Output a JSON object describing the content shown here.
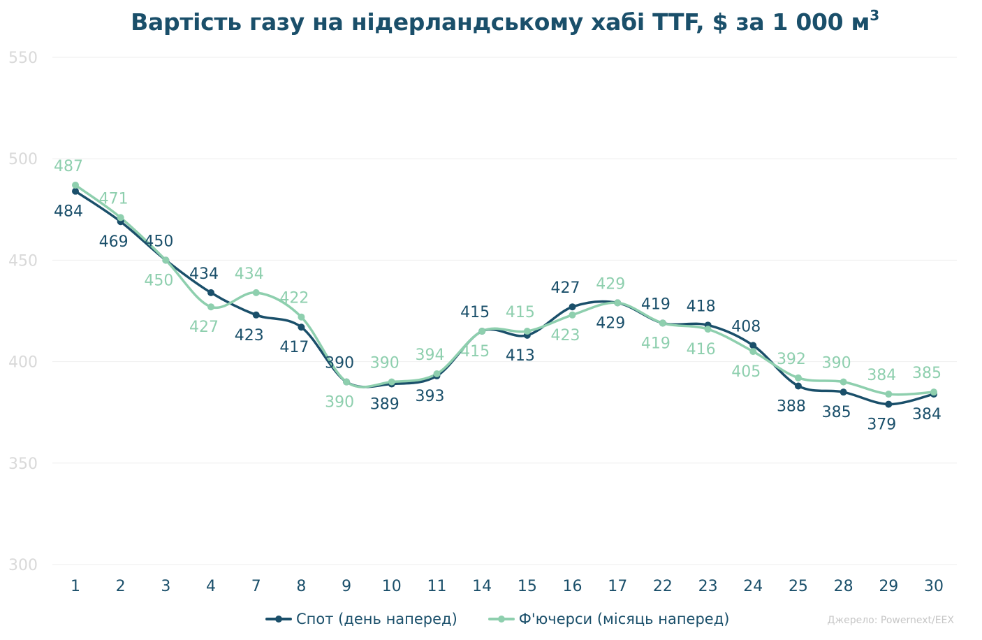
{
  "title_main": "Вартість газу на нідерландському хабі TTF, $ за 1 000 м",
  "title_sup": "3",
  "source": "Джерело: Powernext/EEX",
  "colors": {
    "spot": "#1a4f6a",
    "futures": "#8ecfae",
    "grid": "#eeeeee",
    "axis_text": "#d9d9d9",
    "tick_text": "#1a4f6a"
  },
  "chart_data": {
    "type": "line",
    "title": "Вартість газу на нідерландському хабі TTF, $ за 1 000 м³",
    "categories": [
      "1",
      "2",
      "3",
      "4",
      "7",
      "8",
      "9",
      "10",
      "11",
      "14",
      "15",
      "16",
      "17",
      "22",
      "23",
      "24",
      "25",
      "28",
      "29",
      "30"
    ],
    "ylim": [
      300,
      550
    ],
    "yticks": [
      300,
      350,
      400,
      450,
      500,
      550
    ],
    "grid": true,
    "legend_position": "bottom",
    "series": [
      {
        "name": "Спот (день наперед)",
        "color": "#1a4f6a",
        "values": [
          484,
          469,
          450,
          434,
          423,
          417,
          390,
          389,
          393,
          415,
          413,
          427,
          429,
          419,
          418,
          408,
          388,
          385,
          379,
          384
        ],
        "label_pos": [
          "below",
          "below",
          "above",
          "above",
          "below",
          "below",
          "above",
          "below",
          "below",
          "above",
          "below",
          "above",
          "below",
          "above",
          "above",
          "above",
          "below",
          "below",
          "below",
          "below"
        ]
      },
      {
        "name": "Ф'ючерси (місяць наперед)",
        "color": "#8ecfae",
        "values": [
          487,
          471,
          450,
          427,
          434,
          422,
          390,
          390,
          394,
          415,
          415,
          423,
          429,
          419,
          416,
          405,
          392,
          390,
          384,
          385
        ],
        "label_pos": [
          "above",
          "above",
          "below",
          "below",
          "above",
          "above",
          "below",
          "above",
          "above",
          "below",
          "above",
          "below",
          "above",
          "below",
          "below",
          "below",
          "above",
          "above",
          "above",
          "above"
        ]
      }
    ]
  }
}
